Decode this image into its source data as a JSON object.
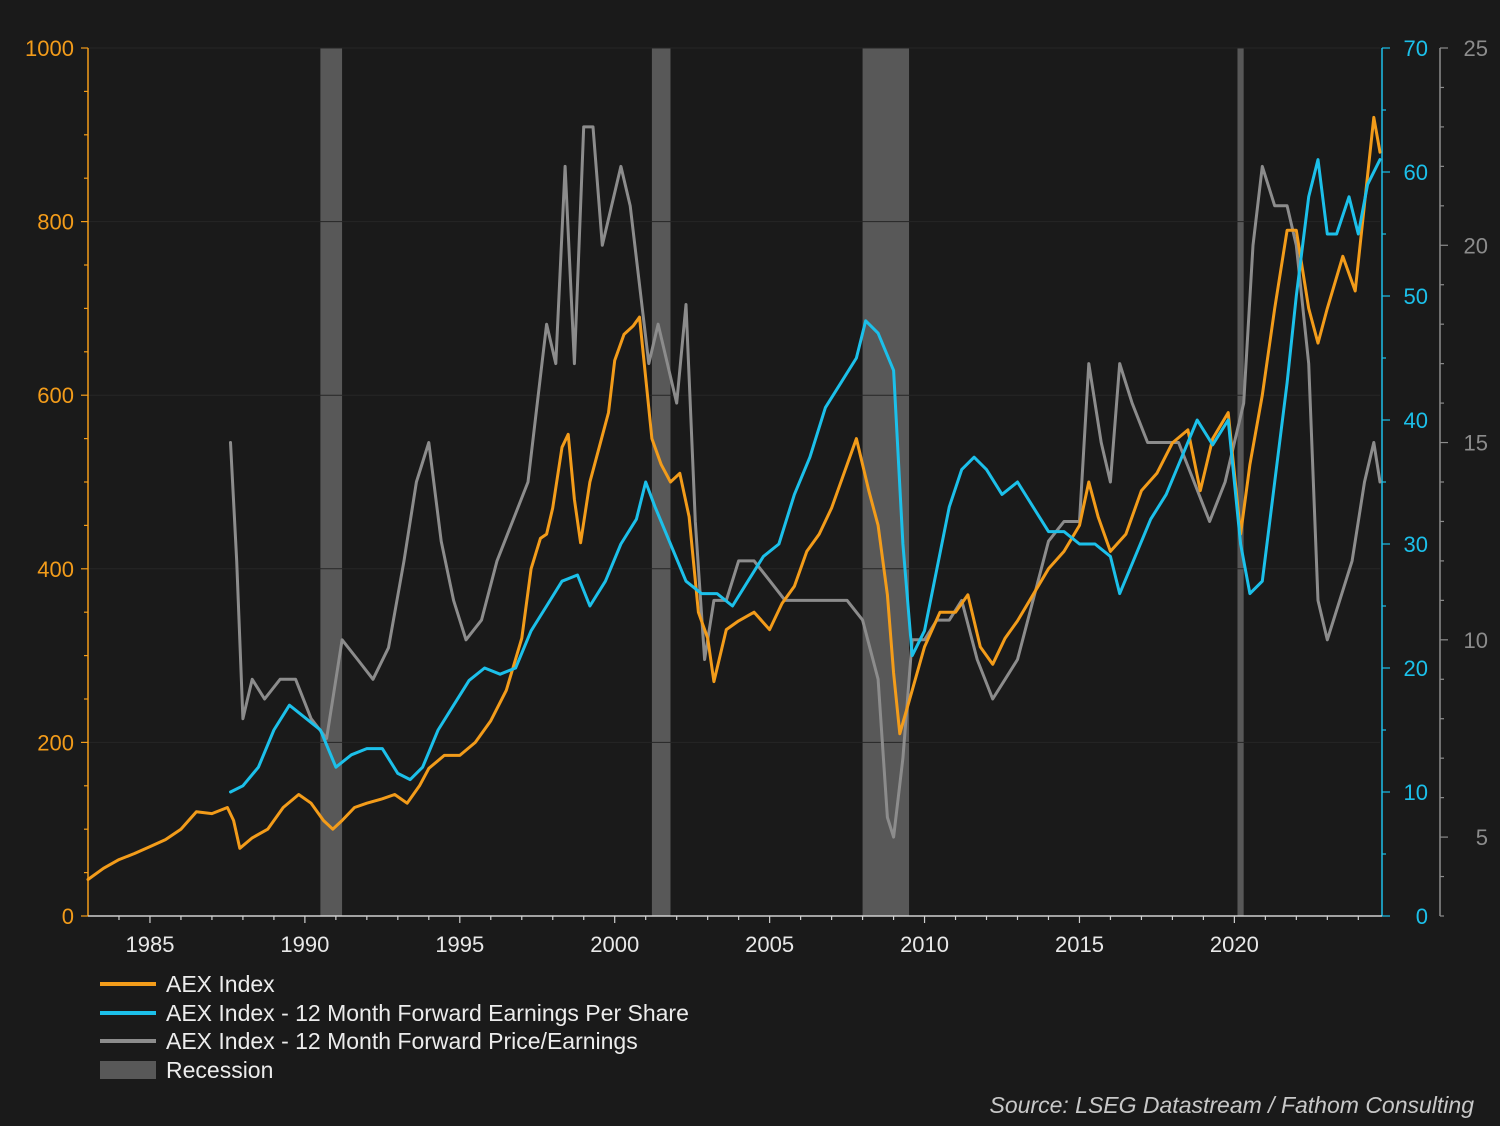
{
  "chart_data": {
    "type": "line",
    "x_range": [
      1983.0,
      2024.7
    ],
    "x_ticks": [
      "1985",
      "1990",
      "1995",
      "2000",
      "2005",
      "2010",
      "2015",
      "2020"
    ],
    "y_left": {
      "ylim": [
        0,
        1000
      ],
      "ticks": [
        "0",
        "200",
        "400",
        "600",
        "800",
        "1000"
      ],
      "color": "#f39c1a"
    },
    "y_mid": {
      "ylim": [
        0,
        70
      ],
      "ticks": [
        "0",
        "10",
        "20",
        "30",
        "40",
        "50",
        "60",
        "70"
      ],
      "color": "#1cc0ea"
    },
    "y_right": {
      "ylim": [
        3,
        25
      ],
      "ticks": [
        "5",
        "10",
        "15",
        "20",
        "25"
      ],
      "color": "#8c8c8c"
    },
    "recessions": [
      [
        1990.5,
        1991.2
      ],
      [
        2001.2,
        2001.8
      ],
      [
        2008.0,
        2009.5
      ],
      [
        2020.1,
        2020.3
      ]
    ],
    "series": [
      {
        "name": "AEX Index",
        "axis": "left",
        "color": "#f39c1a",
        "points": [
          [
            1983.0,
            42
          ],
          [
            1983.5,
            55
          ],
          [
            1984.0,
            65
          ],
          [
            1984.5,
            72
          ],
          [
            1985.0,
            80
          ],
          [
            1985.5,
            88
          ],
          [
            1986.0,
            100
          ],
          [
            1986.5,
            120
          ],
          [
            1987.0,
            118
          ],
          [
            1987.5,
            125
          ],
          [
            1987.7,
            110
          ],
          [
            1987.9,
            78
          ],
          [
            1988.3,
            90
          ],
          [
            1988.8,
            100
          ],
          [
            1989.3,
            125
          ],
          [
            1989.8,
            140
          ],
          [
            1990.2,
            130
          ],
          [
            1990.6,
            110
          ],
          [
            1990.9,
            100
          ],
          [
            1991.2,
            110
          ],
          [
            1991.6,
            125
          ],
          [
            1992.0,
            130
          ],
          [
            1992.5,
            135
          ],
          [
            1992.9,
            140
          ],
          [
            1993.3,
            130
          ],
          [
            1993.7,
            150
          ],
          [
            1994.0,
            170
          ],
          [
            1994.5,
            185
          ],
          [
            1995.0,
            185
          ],
          [
            1995.5,
            200
          ],
          [
            1996.0,
            225
          ],
          [
            1996.5,
            260
          ],
          [
            1997.0,
            320
          ],
          [
            1997.3,
            400
          ],
          [
            1997.6,
            435
          ],
          [
            1997.8,
            440
          ],
          [
            1998.0,
            470
          ],
          [
            1998.3,
            540
          ],
          [
            1998.5,
            555
          ],
          [
            1998.7,
            480
          ],
          [
            1998.9,
            430
          ],
          [
            1999.2,
            500
          ],
          [
            1999.5,
            540
          ],
          [
            1999.8,
            580
          ],
          [
            2000.0,
            640
          ],
          [
            2000.3,
            670
          ],
          [
            2000.6,
            680
          ],
          [
            2000.8,
            690
          ],
          [
            2001.0,
            620
          ],
          [
            2001.2,
            550
          ],
          [
            2001.5,
            520
          ],
          [
            2001.8,
            500
          ],
          [
            2002.1,
            510
          ],
          [
            2002.4,
            460
          ],
          [
            2002.7,
            350
          ],
          [
            2003.0,
            320
          ],
          [
            2003.2,
            270
          ],
          [
            2003.6,
            330
          ],
          [
            2004.0,
            340
          ],
          [
            2004.5,
            350
          ],
          [
            2005.0,
            330
          ],
          [
            2005.4,
            360
          ],
          [
            2005.8,
            380
          ],
          [
            2006.2,
            420
          ],
          [
            2006.6,
            440
          ],
          [
            2007.0,
            470
          ],
          [
            2007.5,
            520
          ],
          [
            2007.8,
            550
          ],
          [
            2008.2,
            490
          ],
          [
            2008.5,
            450
          ],
          [
            2008.8,
            370
          ],
          [
            2009.0,
            280
          ],
          [
            2009.2,
            210
          ],
          [
            2009.6,
            260
          ],
          [
            2010.0,
            310
          ],
          [
            2010.5,
            350
          ],
          [
            2011.0,
            350
          ],
          [
            2011.4,
            370
          ],
          [
            2011.8,
            310
          ],
          [
            2012.2,
            290
          ],
          [
            2012.6,
            320
          ],
          [
            2013.0,
            340
          ],
          [
            2013.5,
            370
          ],
          [
            2014.0,
            400
          ],
          [
            2014.5,
            420
          ],
          [
            2015.0,
            450
          ],
          [
            2015.3,
            500
          ],
          [
            2015.6,
            460
          ],
          [
            2016.0,
            420
          ],
          [
            2016.5,
            440
          ],
          [
            2017.0,
            490
          ],
          [
            2017.5,
            510
          ],
          [
            2018.0,
            545
          ],
          [
            2018.5,
            560
          ],
          [
            2018.9,
            490
          ],
          [
            2019.3,
            550
          ],
          [
            2019.8,
            580
          ],
          [
            2020.2,
            440
          ],
          [
            2020.5,
            520
          ],
          [
            2020.9,
            600
          ],
          [
            2021.3,
            700
          ],
          [
            2021.7,
            790
          ],
          [
            2022.0,
            790
          ],
          [
            2022.4,
            700
          ],
          [
            2022.7,
            660
          ],
          [
            2023.0,
            700
          ],
          [
            2023.5,
            760
          ],
          [
            2023.9,
            720
          ],
          [
            2024.2,
            820
          ],
          [
            2024.5,
            920
          ],
          [
            2024.7,
            880
          ]
        ]
      },
      {
        "name": "AEX Index - 12 Month Forward Earnings Per Share",
        "axis": "mid",
        "color": "#1cc0ea",
        "points": [
          [
            1987.6,
            10
          ],
          [
            1988.0,
            10.5
          ],
          [
            1988.5,
            12
          ],
          [
            1989.0,
            15
          ],
          [
            1989.5,
            17
          ],
          [
            1990.0,
            16
          ],
          [
            1990.5,
            15
          ],
          [
            1991.0,
            12
          ],
          [
            1991.5,
            13
          ],
          [
            1992.0,
            13.5
          ],
          [
            1992.5,
            13.5
          ],
          [
            1993.0,
            11.5
          ],
          [
            1993.4,
            11
          ],
          [
            1993.8,
            12
          ],
          [
            1994.3,
            15
          ],
          [
            1994.8,
            17
          ],
          [
            1995.3,
            19
          ],
          [
            1995.8,
            20
          ],
          [
            1996.3,
            19.5
          ],
          [
            1996.8,
            20
          ],
          [
            1997.3,
            23
          ],
          [
            1997.8,
            25
          ],
          [
            1998.3,
            27
          ],
          [
            1998.8,
            27.5
          ],
          [
            1999.2,
            25
          ],
          [
            1999.7,
            27
          ],
          [
            2000.2,
            30
          ],
          [
            2000.7,
            32
          ],
          [
            2001.0,
            35
          ],
          [
            2001.3,
            33
          ],
          [
            2001.8,
            30
          ],
          [
            2002.3,
            27
          ],
          [
            2002.8,
            26
          ],
          [
            2003.3,
            26
          ],
          [
            2003.8,
            25
          ],
          [
            2004.3,
            27
          ],
          [
            2004.8,
            29
          ],
          [
            2005.3,
            30
          ],
          [
            2005.8,
            34
          ],
          [
            2006.3,
            37
          ],
          [
            2006.8,
            41
          ],
          [
            2007.3,
            43
          ],
          [
            2007.8,
            45
          ],
          [
            2008.1,
            48
          ],
          [
            2008.5,
            47
          ],
          [
            2009.0,
            44
          ],
          [
            2009.3,
            30
          ],
          [
            2009.6,
            21
          ],
          [
            2010.0,
            23
          ],
          [
            2010.4,
            28
          ],
          [
            2010.8,
            33
          ],
          [
            2011.2,
            36
          ],
          [
            2011.6,
            37
          ],
          [
            2012.0,
            36
          ],
          [
            2012.5,
            34
          ],
          [
            2013.0,
            35
          ],
          [
            2013.5,
            33
          ],
          [
            2014.0,
            31
          ],
          [
            2014.5,
            31
          ],
          [
            2015.0,
            30
          ],
          [
            2015.5,
            30
          ],
          [
            2016.0,
            29
          ],
          [
            2016.3,
            26
          ],
          [
            2016.8,
            29
          ],
          [
            2017.3,
            32
          ],
          [
            2017.8,
            34
          ],
          [
            2018.3,
            37
          ],
          [
            2018.8,
            40
          ],
          [
            2019.3,
            38
          ],
          [
            2019.8,
            40
          ],
          [
            2020.2,
            30
          ],
          [
            2020.5,
            26
          ],
          [
            2020.9,
            27
          ],
          [
            2021.3,
            35
          ],
          [
            2021.7,
            43
          ],
          [
            2022.0,
            50
          ],
          [
            2022.4,
            58
          ],
          [
            2022.7,
            61
          ],
          [
            2023.0,
            55
          ],
          [
            2023.3,
            55
          ],
          [
            2023.7,
            58
          ],
          [
            2024.0,
            55
          ],
          [
            2024.3,
            59
          ],
          [
            2024.7,
            61
          ]
        ]
      },
      {
        "name": "AEX Index - 12 Month Forward Price/Earnings",
        "axis": "right",
        "color": "#8c8c8c",
        "points": [
          [
            1987.6,
            15
          ],
          [
            1987.8,
            12
          ],
          [
            1988.0,
            8
          ],
          [
            1988.3,
            9
          ],
          [
            1988.7,
            8.5
          ],
          [
            1989.2,
            9
          ],
          [
            1989.7,
            9
          ],
          [
            1990.2,
            8
          ],
          [
            1990.7,
            7.5
          ],
          [
            1991.2,
            10
          ],
          [
            1991.7,
            9.5
          ],
          [
            1992.2,
            9
          ],
          [
            1992.7,
            9.8
          ],
          [
            1993.2,
            12
          ],
          [
            1993.6,
            14
          ],
          [
            1994.0,
            15
          ],
          [
            1994.4,
            12.5
          ],
          [
            1994.8,
            11
          ],
          [
            1995.2,
            10
          ],
          [
            1995.7,
            10.5
          ],
          [
            1996.2,
            12
          ],
          [
            1996.7,
            13
          ],
          [
            1997.2,
            14
          ],
          [
            1997.5,
            16
          ],
          [
            1997.8,
            18
          ],
          [
            1998.1,
            17
          ],
          [
            1998.4,
            22
          ],
          [
            1998.7,
            17
          ],
          [
            1999.0,
            23
          ],
          [
            1999.3,
            23
          ],
          [
            1999.6,
            20
          ],
          [
            1999.9,
            21
          ],
          [
            2000.2,
            22
          ],
          [
            2000.5,
            21
          ],
          [
            2000.8,
            19
          ],
          [
            2001.1,
            17
          ],
          [
            2001.4,
            18
          ],
          [
            2001.7,
            17
          ],
          [
            2002.0,
            16
          ],
          [
            2002.3,
            18.5
          ],
          [
            2002.6,
            13
          ],
          [
            2002.9,
            9.5
          ],
          [
            2003.2,
            11
          ],
          [
            2003.6,
            11
          ],
          [
            2004.0,
            12
          ],
          [
            2004.5,
            12
          ],
          [
            2005.0,
            11.5
          ],
          [
            2005.5,
            11
          ],
          [
            2006.0,
            11
          ],
          [
            2006.5,
            11
          ],
          [
            2007.0,
            11
          ],
          [
            2007.5,
            11
          ],
          [
            2008.0,
            10.5
          ],
          [
            2008.5,
            9
          ],
          [
            2008.8,
            5.5
          ],
          [
            2009.0,
            5
          ],
          [
            2009.3,
            7
          ],
          [
            2009.6,
            10
          ],
          [
            2010.0,
            10
          ],
          [
            2010.4,
            10.5
          ],
          [
            2010.8,
            10.5
          ],
          [
            2011.2,
            11
          ],
          [
            2011.7,
            9.5
          ],
          [
            2012.2,
            8.5
          ],
          [
            2012.6,
            9
          ],
          [
            2013.0,
            9.5
          ],
          [
            2013.5,
            11
          ],
          [
            2014.0,
            12.5
          ],
          [
            2014.5,
            13
          ],
          [
            2015.0,
            13
          ],
          [
            2015.3,
            17
          ],
          [
            2015.7,
            15
          ],
          [
            2016.0,
            14
          ],
          [
            2016.3,
            17
          ],
          [
            2016.7,
            16
          ],
          [
            2017.2,
            15
          ],
          [
            2017.7,
            15
          ],
          [
            2018.2,
            15
          ],
          [
            2018.7,
            14
          ],
          [
            2019.2,
            13
          ],
          [
            2019.7,
            14
          ],
          [
            2020.0,
            15
          ],
          [
            2020.3,
            16
          ],
          [
            2020.6,
            20
          ],
          [
            2020.9,
            22
          ],
          [
            2021.3,
            21
          ],
          [
            2021.7,
            21
          ],
          [
            2022.0,
            20
          ],
          [
            2022.4,
            17
          ],
          [
            2022.7,
            11
          ],
          [
            2023.0,
            10
          ],
          [
            2023.4,
            11
          ],
          [
            2023.8,
            12
          ],
          [
            2024.2,
            14
          ],
          [
            2024.5,
            15
          ],
          [
            2024.7,
            14
          ]
        ]
      }
    ],
    "legend": [
      {
        "label": "AEX Index",
        "color": "#f39c1a",
        "kind": "line"
      },
      {
        "label": "AEX Index - 12 Month Forward Earnings Per Share",
        "color": "#1cc0ea",
        "kind": "line"
      },
      {
        "label": "AEX Index - 12 Month Forward Price/Earnings",
        "color": "#8c8c8c",
        "kind": "line"
      },
      {
        "label": "Recession",
        "color": "#585858",
        "kind": "block"
      }
    ]
  },
  "source": "Source: LSEG Datastream / Fathom Consulting"
}
